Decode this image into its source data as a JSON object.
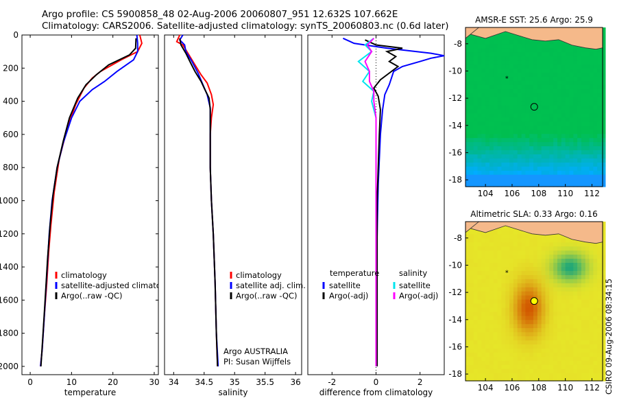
{
  "header": {
    "line1": "Argo profile: CS 5900858_48 02-Aug-2006 20060807_951 12.632S 107.662E",
    "line2": "Climatology: CARS2006. Satellite-adjusted climatology: synTS_20060803.nc (0.6d later)"
  },
  "stamp": "CSIRO 09-Aug-2006 08:34:15",
  "colors": {
    "climatology": "#ff0000",
    "satellite": "#0000ff",
    "argo": "#000000",
    "argo_adj": "#ff00ff",
    "satellite_salinity": "#00e5ee"
  },
  "chart_data": [
    {
      "type": "line",
      "xlabel": "temperature",
      "ylabel": "",
      "xlim": [
        -2,
        31
      ],
      "ylim": [
        2050,
        0
      ],
      "xticks": [
        0,
        10,
        20,
        30
      ],
      "yticks": [
        0,
        200,
        400,
        600,
        800,
        1000,
        1200,
        1400,
        1600,
        1800,
        2000
      ],
      "legend": [
        "climatology",
        "satellite-adjusted climatology",
        "Argo(..raw -QC)"
      ],
      "series": [
        {
          "name": "climatology",
          "color": "#ff0000",
          "points": [
            [
              26.5,
              0
            ],
            [
              27,
              50
            ],
            [
              26,
              100
            ],
            [
              22,
              150
            ],
            [
              17,
              220
            ],
            [
              15,
              260
            ],
            [
              13,
              320
            ],
            [
              11,
              420
            ],
            [
              9,
              560
            ],
            [
              7,
              750
            ],
            [
              5.8,
              950
            ],
            [
              5,
              1150
            ],
            [
              4.5,
              1300
            ],
            [
              4,
              1500
            ],
            [
              3.4,
              1700
            ],
            [
              2.9,
              1900
            ],
            [
              2.5,
              2000
            ]
          ]
        },
        {
          "name": "satellite-adjusted climatology",
          "color": "#0000ff",
          "points": [
            [
              25.8,
              0
            ],
            [
              26,
              50
            ],
            [
              26,
              100
            ],
            [
              25,
              150
            ],
            [
              21,
              220
            ],
            [
              18,
              280
            ],
            [
              15,
              330
            ],
            [
              12,
              400
            ],
            [
              10,
              500
            ],
            [
              8,
              650
            ],
            [
              6.5,
              800
            ],
            [
              5.3,
              1000
            ],
            [
              4.6,
              1200
            ],
            [
              4,
              1450
            ],
            [
              3.4,
              1700
            ],
            [
              2.9,
              1900
            ],
            [
              2.5,
              2000
            ]
          ]
        },
        {
          "name": "Argo(..raw -QC)",
          "color": "#000000",
          "points": [
            [
              25.6,
              20
            ],
            [
              25.5,
              80
            ],
            [
              24,
              120
            ],
            [
              19,
              180
            ],
            [
              16,
              240
            ],
            [
              13.5,
              300
            ],
            [
              11.5,
              380
            ],
            [
              9.5,
              500
            ],
            [
              8,
              640
            ],
            [
              6.5,
              800
            ],
            [
              5.5,
              970
            ],
            [
              4.8,
              1150
            ],
            [
              4.2,
              1350
            ],
            [
              3.6,
              1600
            ],
            [
              3.1,
              1800
            ],
            [
              2.6,
              2000
            ]
          ]
        }
      ]
    },
    {
      "type": "line",
      "xlabel": "salinity",
      "ylabel": "",
      "xlim": [
        33.85,
        36.1
      ],
      "ylim": [
        2050,
        0
      ],
      "xticks": [
        34,
        34.5,
        35,
        35.5,
        36
      ],
      "yticks": [],
      "legend": [
        "climatology",
        "satellite adj. clim.",
        "Argo(..raw -QC)"
      ],
      "annotations": [
        "Argo AUSTRALIA",
        "PI: Susan Wijffels"
      ],
      "series": [
        {
          "name": "climatology",
          "color": "#ff0000",
          "points": [
            [
              34.1,
              0
            ],
            [
              34.05,
              40
            ],
            [
              34.15,
              60
            ],
            [
              34.25,
              120
            ],
            [
              34.35,
              180
            ],
            [
              34.45,
              240
            ],
            [
              34.55,
              290
            ],
            [
              34.62,
              360
            ],
            [
              34.65,
              420
            ],
            [
              34.62,
              500
            ],
            [
              34.6,
              600
            ],
            [
              34.6,
              800
            ],
            [
              34.62,
              1000
            ],
            [
              34.65,
              1200
            ],
            [
              34.68,
              1500
            ],
            [
              34.7,
              1800
            ],
            [
              34.72,
              2000
            ]
          ]
        },
        {
          "name": "satellite adj. clim.",
          "color": "#0000ff",
          "points": [
            [
              34.15,
              0
            ],
            [
              34.1,
              30
            ],
            [
              34.18,
              60
            ],
            [
              34.2,
              100
            ],
            [
              34.3,
              160
            ],
            [
              34.4,
              230
            ],
            [
              34.48,
              300
            ],
            [
              34.55,
              360
            ],
            [
              34.6,
              440
            ],
            [
              34.6,
              550
            ],
            [
              34.6,
              800
            ],
            [
              34.62,
              1000
            ],
            [
              34.65,
              1200
            ],
            [
              34.68,
              1500
            ],
            [
              34.7,
              1800
            ],
            [
              34.73,
              2000
            ]
          ]
        },
        {
          "name": "Argo(..raw -QC)",
          "color": "#000000",
          "points": [
            [
              34.1,
              20
            ],
            [
              34.12,
              60
            ],
            [
              34.2,
              110
            ],
            [
              34.28,
              170
            ],
            [
              34.35,
              220
            ],
            [
              34.45,
              280
            ],
            [
              34.5,
              320
            ],
            [
              34.58,
              380
            ],
            [
              34.6,
              450
            ],
            [
              34.6,
              550
            ],
            [
              34.6,
              800
            ],
            [
              34.62,
              1000
            ],
            [
              34.65,
              1200
            ],
            [
              34.68,
              1500
            ],
            [
              34.7,
              1800
            ],
            [
              34.72,
              2000
            ]
          ]
        }
      ]
    },
    {
      "type": "line",
      "xlabel": "difference from climatology",
      "ylabel": "",
      "xlim": [
        -3.1,
        3.1
      ],
      "ylim": [
        2050,
        0
      ],
      "xticks": [
        -2,
        0,
        2
      ],
      "yticks": [],
      "legend_groups": [
        {
          "title": "temperature",
          "items": [
            "satellite",
            "Argo(-adj)"
          ]
        },
        {
          "title": "salinity",
          "items": [
            "satellite",
            "Argo(-adj)"
          ]
        }
      ],
      "series": [
        {
          "name": "temperature satellite",
          "color": "#0000ff",
          "points": [
            [
              -1.5,
              20
            ],
            [
              -1,
              50
            ],
            [
              0.5,
              80
            ],
            [
              2.5,
              110
            ],
            [
              3.1,
              125
            ],
            [
              2.5,
              140
            ],
            [
              2,
              160
            ],
            [
              1.2,
              190
            ],
            [
              0.8,
              220
            ],
            [
              0.6,
              300
            ],
            [
              0.4,
              360
            ],
            [
              0.3,
              450
            ],
            [
              0.2,
              600
            ],
            [
              0.1,
              900
            ],
            [
              0.05,
              1200
            ],
            [
              0,
              1500
            ],
            [
              0,
              2000
            ]
          ]
        },
        {
          "name": "temperature Argo(-adj)",
          "color": "#000000",
          "points": [
            [
              -0.5,
              30
            ],
            [
              0,
              60
            ],
            [
              1.2,
              80
            ],
            [
              0.5,
              100
            ],
            [
              0.9,
              130
            ],
            [
              0.6,
              160
            ],
            [
              1,
              190
            ],
            [
              0.6,
              230
            ],
            [
              0.2,
              270
            ],
            [
              -0.1,
              320
            ],
            [
              0.1,
              370
            ],
            [
              0.2,
              450
            ],
            [
              0.15,
              600
            ],
            [
              0.1,
              800
            ],
            [
              0.05,
              1000
            ],
            [
              0.05,
              1500
            ],
            [
              0.05,
              2000
            ]
          ]
        },
        {
          "name": "salinity satellite",
          "color": "#00e5ee",
          "points": [
            [
              -0.1,
              20
            ],
            [
              -0.5,
              60
            ],
            [
              -0.2,
              100
            ],
            [
              -0.8,
              160
            ],
            [
              -0.3,
              220
            ],
            [
              -0.6,
              280
            ],
            [
              -0.1,
              340
            ],
            [
              -0.2,
              400
            ],
            [
              0,
              500
            ],
            [
              0,
              800
            ],
            [
              0,
              2000
            ]
          ]
        },
        {
          "name": "salinity Argo(-adj)",
          "color": "#ff00ff",
          "points": [
            [
              -0.1,
              20
            ],
            [
              -0.4,
              60
            ],
            [
              -0.2,
              100
            ],
            [
              -0.5,
              160
            ],
            [
              -0.3,
              220
            ],
            [
              -0.3,
              280
            ],
            [
              -0.1,
              340
            ],
            [
              -0.1,
              400
            ],
            [
              0,
              500
            ],
            [
              0,
              800
            ],
            [
              0,
              2000
            ]
          ]
        }
      ]
    },
    {
      "type": "heatmap",
      "title": "AMSR-E SST: 25.6  Argo: 25.9",
      "xlim": [
        102.5,
        112.8
      ],
      "ylim": [
        -18.5,
        -6.8
      ],
      "xticks": [
        104,
        106,
        108,
        110,
        112
      ],
      "yticks": [
        -8,
        -10,
        -12,
        -14,
        -16,
        -18
      ],
      "markers": [
        {
          "x": 107.662,
          "y": -12.632,
          "fill": "none"
        },
        {
          "x": 105.6,
          "y": -10.5,
          "label": "*"
        }
      ]
    },
    {
      "type": "heatmap",
      "title": "Altimetric SLA: 0.33  Argo: 0.16",
      "xlim": [
        102.5,
        112.8
      ],
      "ylim": [
        -18.5,
        -6.8
      ],
      "xticks": [
        104,
        106,
        108,
        110,
        112
      ],
      "yticks": [
        -8,
        -10,
        -12,
        -14,
        -16,
        -18
      ],
      "markers": [
        {
          "x": 107.662,
          "y": -12.632,
          "fill": "#ffff00"
        },
        {
          "x": 105.6,
          "y": -10.5,
          "label": "*"
        }
      ]
    }
  ]
}
